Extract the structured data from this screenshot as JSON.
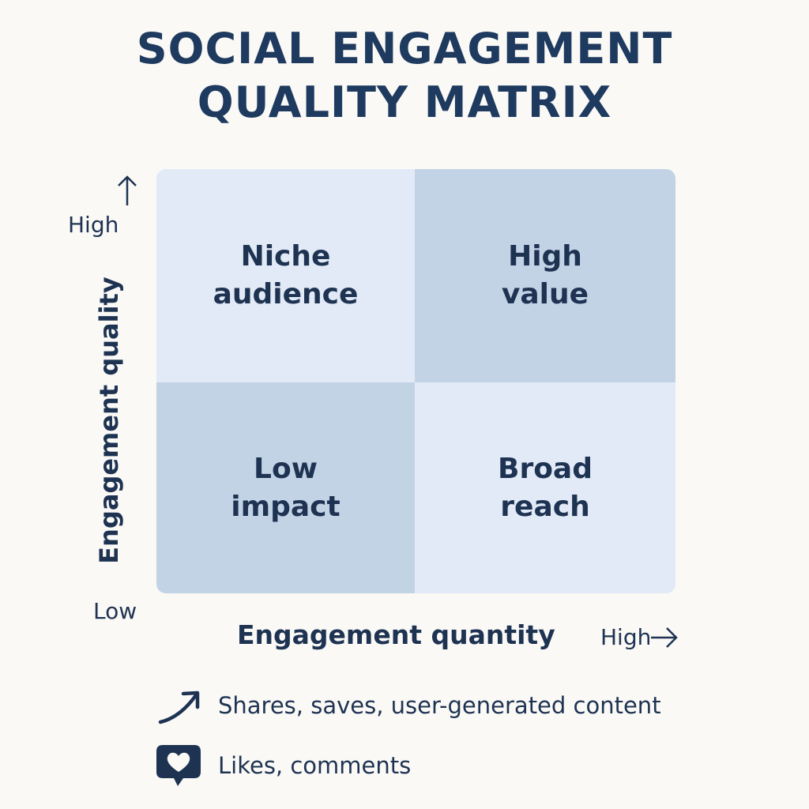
{
  "title": {
    "line1": "SOCIAL ENGAGEMENT",
    "line2": "QUALITY MATRIX"
  },
  "quadrants": {
    "top_left": {
      "line1": "Niche",
      "line2": "audience"
    },
    "top_right": {
      "line1": "High",
      "line2": "value"
    },
    "bottom_left": {
      "line1": "Low",
      "line2": "impact"
    },
    "bottom_right": {
      "line1": "Broad",
      "line2": "reach"
    }
  },
  "axes": {
    "y_label": "Engagement quality",
    "y_high": "High",
    "y_low": "Low",
    "x_label": "Engagement quantity",
    "x_high": "High"
  },
  "legend": [
    {
      "icon": "trend-arrow-icon",
      "text": "Shares, saves, user-generated content"
    },
    {
      "icon": "heart-bubble-icon",
      "text": "Likes, comments"
    }
  ],
  "colors": {
    "text": "#1e3352",
    "quadrant_light": "#e1eaf6",
    "quadrant_dark": "#c3d3e6",
    "background": "#faf9f6"
  }
}
